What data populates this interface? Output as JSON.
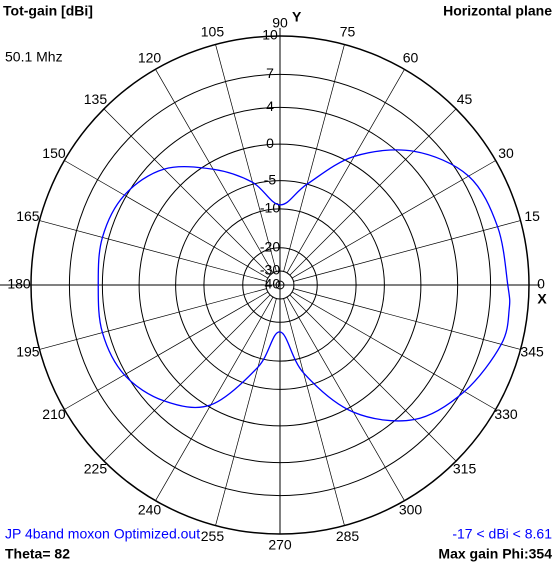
{
  "chart_data": {
    "type": "polar",
    "title": "Tot-gain [dBi]",
    "subtitle": "Horizontal plane",
    "frequency": "50.1 Mhz",
    "x_axis_label": "X",
    "y_axis_label": "Y",
    "theta": [
      0,
      15,
      30,
      45,
      60,
      75,
      90,
      105,
      120,
      135,
      150,
      165,
      180,
      195,
      210,
      225,
      240,
      255,
      270,
      285,
      300,
      315,
      330,
      345,
      354
    ],
    "series": [
      {
        "name": "JP 4band moxon Optimized.out",
        "color": "#0000ff",
        "values": [
          8.4,
          8.2,
          7.6,
          5.1,
          0.9,
          -5.0,
          -9.2,
          -4.7,
          -0.9,
          2.6,
          4.2,
          4.6,
          4.4,
          4.6,
          4.2,
          2.6,
          -0.3,
          -8.3,
          -17,
          -7.2,
          0.7,
          5.2,
          7.2,
          8.5,
          8.61
        ]
      }
    ],
    "rlim": [
      -40,
      10
    ],
    "rticks": [
      -40,
      -30,
      -20,
      -10,
      -5,
      0,
      4,
      7,
      10
    ],
    "thetaticks": [
      0,
      15,
      30,
      45,
      60,
      75,
      90,
      105,
      120,
      135,
      150,
      165,
      180,
      195,
      210,
      225,
      240,
      255,
      270,
      285,
      300,
      315,
      330,
      345
    ],
    "range_label": "-17 < dBi < 8.61",
    "theta_label": "Theta= 82",
    "max_gain_label": "Max gain Phi:354"
  }
}
